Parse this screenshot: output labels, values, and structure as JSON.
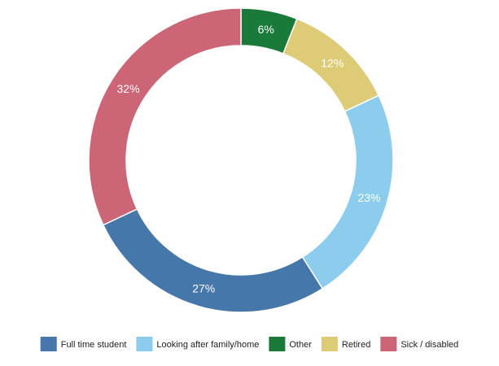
{
  "chart_data": {
    "type": "pie",
    "donut": true,
    "slices": [
      {
        "label": "Other",
        "value": 6,
        "display": "6%",
        "color": "#1a7a3a"
      },
      {
        "label": "Retired",
        "value": 12,
        "display": "12%",
        "color": "#ddcb75"
      },
      {
        "label": "Looking after family/home",
        "value": 23,
        "display": "23%",
        "color": "#8ccdee"
      },
      {
        "label": "Full time student",
        "value": 27,
        "display": "27%",
        "color": "#4677ab"
      },
      {
        "label": "Sick / disabled",
        "value": 32,
        "display": "32%",
        "color": "#cc6677"
      }
    ],
    "legend": {
      "placement": "bottom",
      "order": [
        "Full time student",
        "Looking after family/home",
        "Other",
        "Retired",
        "Sick / disabled"
      ]
    }
  }
}
